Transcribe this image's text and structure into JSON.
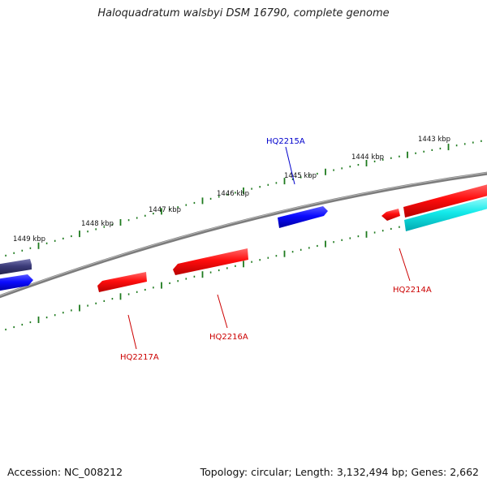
{
  "title": "Haloquadratum walsbyi DSM 16790, complete genome",
  "footer": {
    "accession": "Accession: NC_008212",
    "summary": "Topology: circular; Length: 3,132,494 bp; Genes: 2,662"
  },
  "colors": {
    "backbone": "#7a7a7a",
    "ticks": "#1e7a1e",
    "gene_red": "#ff1a1a",
    "gene_blue": "#1414ff",
    "gene_navy": "#3c3c7a",
    "gene_cyan": "#19f0f0",
    "label_red": "#cc0000",
    "label_blue": "#0000cc"
  },
  "ticks": {
    "labels": [
      "1443 kbp",
      "1444 kbp",
      "1445 kbp",
      "1446 kbp",
      "1447 kbp",
      "1448 kbp",
      "1449 kbp"
    ]
  },
  "genes": {
    "labels": [
      {
        "text": "HQ2215A",
        "color": "blue"
      },
      {
        "text": "HQ2214A",
        "color": "red"
      },
      {
        "text": "HQ2216A",
        "color": "red"
      },
      {
        "text": "HQ2217A",
        "color": "red"
      }
    ]
  }
}
